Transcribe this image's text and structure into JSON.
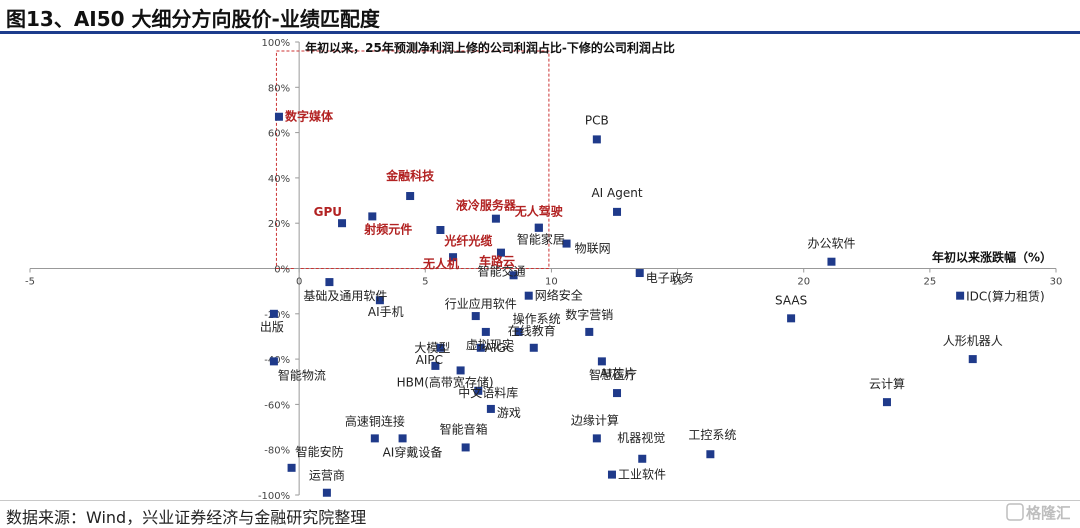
{
  "header": {
    "title": "图13、AI50 大细分方向股价-业绩匹配度"
  },
  "footer": {
    "source": "数据来源：Wind，兴业证券经济与金融研究院整理"
  },
  "watermark": {
    "text": "格隆汇"
  },
  "colors": {
    "marker": "#1f3a8a",
    "highlight": "#b22222",
    "header_rule": "#1c3c8c",
    "box": "#cc3333",
    "axis": "#999999"
  },
  "chart_data": {
    "type": "scatter",
    "title": "",
    "xlabel": "年初以来涨跌幅（%）",
    "ylabel": "年初以来，25年预测净利润上修的公司利润占比-下修的公司利润占比",
    "xlim": [
      -5,
      30
    ],
    "ylim": [
      -1.0,
      1.0
    ],
    "x_ticks": [
      -5,
      0,
      5,
      10,
      15,
      20,
      25,
      30
    ],
    "y_ticks": [
      -1.0,
      -0.8,
      -0.6,
      -0.4,
      -0.2,
      0,
      0.2,
      0.4,
      0.6,
      0.8,
      1.0
    ],
    "x_tick_labels": [
      "-5",
      "0",
      "5",
      "10",
      "15",
      "20",
      "25",
      "30"
    ],
    "y_tick_labels": [
      "-100%",
      "-80%",
      "-60%",
      "-40%",
      "-20%",
      "0%",
      "20%",
      "40%",
      "60%",
      "80%",
      "100%"
    ],
    "grid": false,
    "highlight_box": {
      "x_range": [
        -0.9,
        9.9
      ],
      "y_range": [
        0,
        0.96
      ]
    },
    "points": [
      {
        "label": "数字媒体",
        "x": -0.8,
        "y": 0.67,
        "highlight": true
      },
      {
        "label": "GPU",
        "x": 1.7,
        "y": 0.2,
        "highlight": true
      },
      {
        "label": "射频元件",
        "x": 2.9,
        "y": 0.23,
        "highlight": true
      },
      {
        "label": "金融科技",
        "x": 4.4,
        "y": 0.32,
        "highlight": true
      },
      {
        "label": "光纤光缆",
        "x": 5.6,
        "y": 0.17,
        "highlight": true
      },
      {
        "label": "无人机",
        "x": 6.1,
        "y": 0.05,
        "highlight": true
      },
      {
        "label": "液冷服务器",
        "x": 7.8,
        "y": 0.22,
        "highlight": true
      },
      {
        "label": "车路云",
        "x": 8.0,
        "y": 0.07,
        "highlight": true
      },
      {
        "label": "无人驾驶",
        "x": 9.5,
        "y": 0.18,
        "highlight": true
      },
      {
        "label": "智能家居",
        "x": 9.5,
        "y": 0.18
      },
      {
        "label": "PCB",
        "x": 11.8,
        "y": 0.57
      },
      {
        "label": "AI Agent",
        "x": 12.6,
        "y": 0.25
      },
      {
        "label": "物联网",
        "x": 10.6,
        "y": 0.11
      },
      {
        "label": "电子政务",
        "x": 13.5,
        "y": -0.02
      },
      {
        "label": "办公软件",
        "x": 21.1,
        "y": 0.03
      },
      {
        "label": "智能交通",
        "x": 8.5,
        "y": -0.03
      },
      {
        "label": "基础及通用软件",
        "x": 1.2,
        "y": -0.06
      },
      {
        "label": "网络安全",
        "x": 9.1,
        "y": -0.12
      },
      {
        "label": "AI手机",
        "x": 3.2,
        "y": -0.14
      },
      {
        "label": "出版",
        "x": -1.0,
        "y": -0.2
      },
      {
        "label": "行业应用软件",
        "x": 7.0,
        "y": -0.21
      },
      {
        "label": "操作系统",
        "x": 8.7,
        "y": -0.28
      },
      {
        "label": "虚拟现实",
        "x": 7.4,
        "y": -0.28
      },
      {
        "label": "数字营销",
        "x": 11.5,
        "y": -0.28
      },
      {
        "label": "在线教育",
        "x": 9.3,
        "y": -0.35
      },
      {
        "label": "大模型",
        "x": 5.6,
        "y": -0.35
      },
      {
        "label": "AIGC",
        "x": 7.2,
        "y": -0.35
      },
      {
        "label": "AI芯片",
        "x": 12.0,
        "y": -0.41
      },
      {
        "label": "智能物流",
        "x": -1.0,
        "y": -0.41
      },
      {
        "label": "AIPC",
        "x": 5.4,
        "y": -0.43
      },
      {
        "label": "HBM(高带宽存储)",
        "x": 6.4,
        "y": -0.45
      },
      {
        "label": "智慧医疗",
        "x": 12.6,
        "y": -0.55
      },
      {
        "label": "中文语料库",
        "x": 7.1,
        "y": -0.54
      },
      {
        "label": "游戏",
        "x": 7.6,
        "y": -0.62
      },
      {
        "label": "高速铜连接",
        "x": 3.0,
        "y": -0.75
      },
      {
        "label": "AI穿戴设备",
        "x": 4.1,
        "y": -0.75
      },
      {
        "label": "智能音箱",
        "x": 6.6,
        "y": -0.79
      },
      {
        "label": "边缘计算",
        "x": 11.8,
        "y": -0.75
      },
      {
        "label": "机器视觉",
        "x": 13.6,
        "y": -0.84
      },
      {
        "label": "工业软件",
        "x": 12.4,
        "y": -0.91
      },
      {
        "label": "工控系统",
        "x": 16.3,
        "y": -0.82
      },
      {
        "label": "智能安防",
        "x": -0.3,
        "y": -0.88
      },
      {
        "label": "运营商",
        "x": 1.1,
        "y": -0.99
      },
      {
        "label": "SAAS",
        "x": 19.5,
        "y": -0.22
      },
      {
        "label": "IDC(算力租赁)",
        "x": 26.2,
        "y": -0.12
      },
      {
        "label": "人形机器人",
        "x": 26.7,
        "y": -0.4
      },
      {
        "label": "云计算",
        "x": 23.3,
        "y": -0.59
      }
    ]
  }
}
